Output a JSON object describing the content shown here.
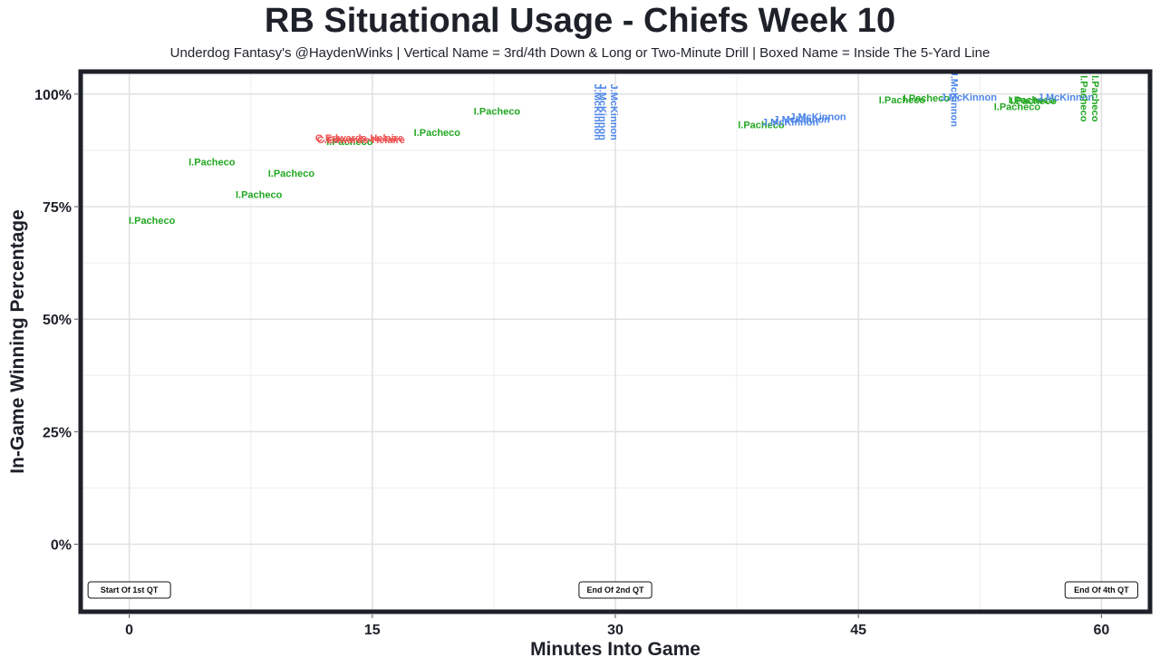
{
  "chart_data": {
    "type": "scatter",
    "title": "RB Situational Usage - Chiefs Week 10",
    "subtitle": "Underdog Fantasy's @HaydenWinks | Vertical Name = 3rd/4th Down & Long or Two-Minute Drill | Boxed Name = Inside The 5-Yard Line",
    "xlabel": "Minutes Into Game",
    "ylabel": "In-Game Winning Percentage",
    "xlim": [
      -3,
      63
    ],
    "ylim": [
      -15,
      105
    ],
    "x_ticks": [
      0,
      15,
      30,
      45,
      60
    ],
    "x_tick_labels": [
      "0",
      "15",
      "30",
      "45",
      "60"
    ],
    "y_ticks": [
      0,
      25,
      50,
      75,
      100
    ],
    "y_tick_labels": [
      "0%",
      "25%",
      "50%",
      "75%",
      "100%"
    ],
    "grid": true,
    "colors": {
      "I.Pacheco": "#22a822",
      "J.McKinnon": "#4d86e8",
      "C.Edwards-Helaire": "#ef5050"
    },
    "annotations": [
      {
        "text": "Start Of 1st QT",
        "x": 0
      },
      {
        "text": "End Of 2nd QT",
        "x": 30
      },
      {
        "text": "End Of 4th QT",
        "x": 60
      }
    ],
    "points": [
      {
        "player": "I.Pacheco",
        "x": 1.4,
        "y": 72,
        "vertical": false
      },
      {
        "player": "I.Pacheco",
        "x": 5.1,
        "y": 85,
        "vertical": false
      },
      {
        "player": "I.Pacheco",
        "x": 8.0,
        "y": 77.7,
        "vertical": false
      },
      {
        "player": "I.Pacheco",
        "x": 10.0,
        "y": 82.5,
        "vertical": false
      },
      {
        "player": "I.Pacheco",
        "x": 13.6,
        "y": 89.5,
        "vertical": false
      },
      {
        "player": "C.Edwards-Helaire",
        "x": 14.2,
        "y": 90.3,
        "vertical": false
      },
      {
        "player": "C.Edwards-Helaire",
        "x": 14.3,
        "y": 89.9,
        "vertical": false
      },
      {
        "player": "I.Pacheco",
        "x": 19.0,
        "y": 91.5,
        "vertical": false
      },
      {
        "player": "I.Pacheco",
        "x": 22.7,
        "y": 96.2,
        "vertical": false
      },
      {
        "player": "J.McKinnon",
        "x": 28.5,
        "y": 96,
        "vertical": true
      },
      {
        "player": "J.McKinnon",
        "x": 28.8,
        "y": 96,
        "vertical": true
      },
      {
        "player": "J.McKinnon",
        "x": 29.5,
        "y": 96,
        "vertical": true
      },
      {
        "player": "I.Pacheco",
        "x": 39.0,
        "y": 93.2,
        "vertical": false
      },
      {
        "player": "J.McKinnon",
        "x": 40.8,
        "y": 93.8,
        "vertical": false
      },
      {
        "player": "J.McKinnon",
        "x": 41.5,
        "y": 94.4,
        "vertical": false
      },
      {
        "player": "J.McKinnon",
        "x": 42.5,
        "y": 95.0,
        "vertical": false
      },
      {
        "player": "I.Pacheco",
        "x": 47.7,
        "y": 98.8,
        "vertical": false
      },
      {
        "player": "I.Pacheco",
        "x": 49.2,
        "y": 99.2,
        "vertical": false
      },
      {
        "player": "J.McKinnon",
        "x": 50.5,
        "y": 99,
        "vertical": true
      },
      {
        "player": "J.McKinnon",
        "x": 51.8,
        "y": 99.4,
        "vertical": false
      },
      {
        "player": "I.Pacheco",
        "x": 54.8,
        "y": 97.2,
        "vertical": false
      },
      {
        "player": "I.Pacheco",
        "x": 55.7,
        "y": 98.8,
        "vertical": false
      },
      {
        "player": "I.Pacheco",
        "x": 55.8,
        "y": 98.6,
        "vertical": false
      },
      {
        "player": "J.McKinnon",
        "x": 57.8,
        "y": 99.4,
        "vertical": false
      },
      {
        "player": "I.Pacheco",
        "x": 58.5,
        "y": 99,
        "vertical": true
      },
      {
        "player": "I.Pacheco",
        "x": 59.2,
        "y": 99,
        "vertical": true
      }
    ]
  }
}
